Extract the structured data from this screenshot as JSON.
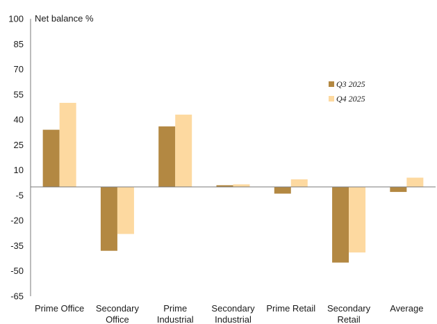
{
  "chart_data": {
    "type": "bar",
    "ylabel": "Net balance %",
    "ylim": [
      -65,
      100
    ],
    "yticks": [
      100,
      85,
      70,
      55,
      40,
      25,
      10,
      -5,
      -20,
      -35,
      -50,
      -65
    ],
    "categories": [
      [
        "Prime Office"
      ],
      [
        "Secondary",
        "Office"
      ],
      [
        "Prime",
        "Industrial"
      ],
      [
        "Secondary",
        "Industrial"
      ],
      [
        "Prime Retail"
      ],
      [
        "Secondary",
        "Retail"
      ],
      [
        "Average"
      ]
    ],
    "series": [
      {
        "name": "Q3 2025",
        "color": "#B38842",
        "values": [
          34,
          -38,
          36,
          1,
          -4,
          -45,
          -3
        ]
      },
      {
        "name": "Q4 2025",
        "color": "#FDD9A0",
        "values": [
          50,
          -28,
          43,
          1.5,
          4.5,
          -39,
          5.5
        ]
      }
    ],
    "legend_position": "right",
    "grid": false
  }
}
